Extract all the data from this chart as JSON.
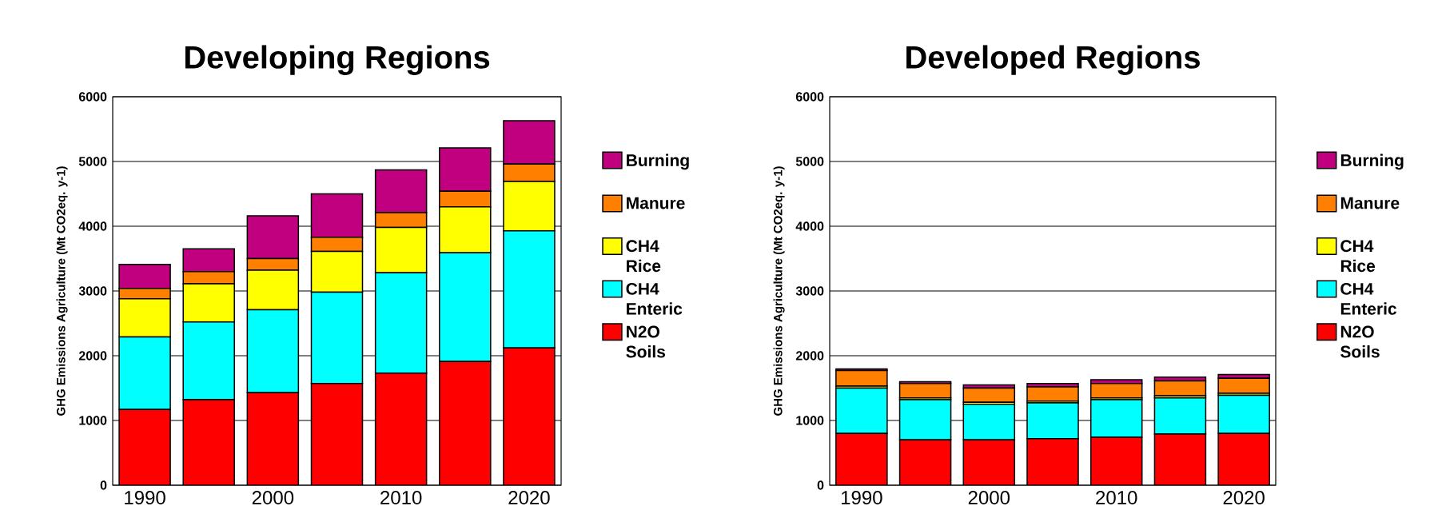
{
  "chart_data": [
    {
      "type": "bar",
      "title": "Developing Regions",
      "ylabel": "GHG Emissions Agriculture (Mt CO2eq. y-1)",
      "categories": [
        "1990",
        null,
        "2000",
        null,
        "2010",
        null,
        "2020"
      ],
      "stacked": true,
      "ylim": [
        0,
        6000
      ],
      "yticks": [
        0,
        1000,
        2000,
        3000,
        4000,
        5000,
        6000
      ],
      "grid": "y",
      "legend": "right",
      "series": [
        {
          "name": "N2O Soils",
          "color": "#ff0000",
          "values": [
            1170,
            1320,
            1430,
            1570,
            1730,
            1910,
            2120
          ]
        },
        {
          "name": "CH4 Enteric",
          "color": "#00ffff",
          "values": [
            1120,
            1200,
            1280,
            1410,
            1550,
            1680,
            1810
          ]
        },
        {
          "name": "CH4 Rice",
          "color": "#ffff00",
          "values": [
            590,
            590,
            610,
            630,
            700,
            710,
            760
          ]
        },
        {
          "name": "Manure",
          "color": "#ff8000",
          "values": [
            160,
            190,
            180,
            220,
            230,
            240,
            270
          ]
        },
        {
          "name": "Burning",
          "color": "#c0007f",
          "values": [
            370,
            350,
            660,
            670,
            660,
            670,
            670
          ]
        }
      ]
    },
    {
      "type": "bar",
      "title": "Developed Regions",
      "ylabel": "GHG Emissions Agriculture (Mt CO2eq. y-1)",
      "categories": [
        "1990",
        null,
        "2000",
        null,
        "2010",
        null,
        "2020"
      ],
      "stacked": true,
      "ylim": [
        0,
        6000
      ],
      "yticks": [
        0,
        1000,
        2000,
        3000,
        4000,
        5000,
        6000
      ],
      "grid": "y",
      "legend": "right",
      "series": [
        {
          "name": "N2O Soils",
          "color": "#ff0000",
          "values": [
            800,
            700,
            700,
            720,
            740,
            790,
            800
          ]
        },
        {
          "name": "CH4 Enteric",
          "color": "#00ffff",
          "values": [
            700,
            620,
            550,
            550,
            580,
            560,
            590
          ]
        },
        {
          "name": "CH4 Rice",
          "color": "#ffff00",
          "values": [
            30,
            30,
            30,
            30,
            30,
            30,
            30
          ]
        },
        {
          "name": "Manure",
          "color": "#ff8000",
          "values": [
            240,
            220,
            220,
            220,
            220,
            230,
            230
          ]
        },
        {
          "name": "Burning",
          "color": "#c0007f",
          "values": [
            25,
            30,
            50,
            50,
            60,
            60,
            60
          ]
        }
      ]
    }
  ]
}
